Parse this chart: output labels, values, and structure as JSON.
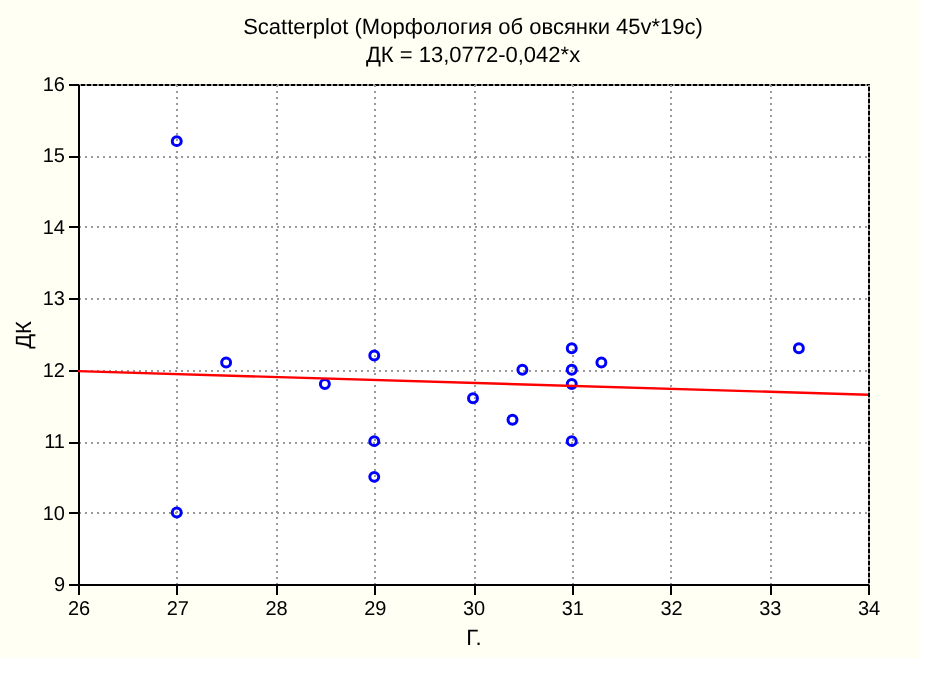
{
  "chart_data": {
    "type": "scatter",
    "title": "Scatterplot (Морфология об овсянки 45v*19c)",
    "subtitle": "ДК = 13,0772-0,042*x",
    "xlabel": "Г.",
    "ylabel": "ДК",
    "xlim": [
      26,
      34
    ],
    "xticks": [
      26,
      27,
      28,
      29,
      30,
      31,
      32,
      33,
      34
    ],
    "ylim": [
      9,
      16
    ],
    "yticks": [
      9,
      10,
      11,
      12,
      13,
      14,
      15,
      16
    ],
    "grid": true,
    "marker": "circle",
    "series": [
      {
        "color": "#0000ff",
        "x": [
          27,
          27,
          27.5,
          28.5,
          29,
          29,
          29,
          30,
          30.4,
          30.5,
          31,
          31,
          31,
          31,
          31.3,
          33.3
        ],
        "values": [
          15.2,
          10,
          12.1,
          11.8,
          12.2,
          11,
          10.5,
          11.6,
          11.3,
          12,
          12.3,
          12,
          11.8,
          11,
          12.1,
          12.3
        ]
      },
      {
        "type": "line",
        "color": "#ff0000",
        "line_style": "solid",
        "marker": "none",
        "x": [
          26,
          34
        ],
        "values": [
          11.98,
          11.65
        ]
      }
    ]
  }
}
